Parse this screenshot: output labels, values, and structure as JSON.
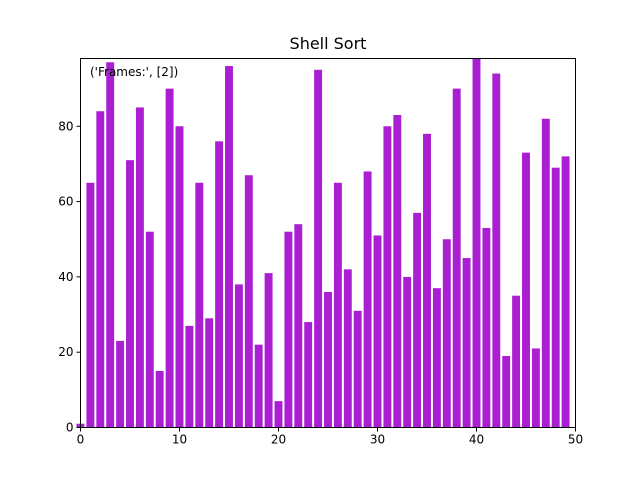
{
  "chart_data": {
    "type": "bar",
    "title": "Shell Sort",
    "annotation": "('Frames:', [2])",
    "xlabel": "",
    "ylabel": "",
    "xlim": [
      0,
      50
    ],
    "ylim": [
      0,
      98
    ],
    "grid": false,
    "bar_color": "#a91fd1",
    "x_ticks": [
      0,
      10,
      20,
      30,
      40,
      50
    ],
    "y_ticks": [
      0,
      20,
      40,
      60,
      80
    ],
    "x": [
      0,
      1,
      2,
      3,
      4,
      5,
      6,
      7,
      8,
      9,
      10,
      11,
      12,
      13,
      14,
      15,
      16,
      17,
      18,
      19,
      20,
      21,
      22,
      23,
      24,
      25,
      26,
      27,
      28,
      29,
      30,
      31,
      32,
      33,
      34,
      35,
      36,
      37,
      38,
      39,
      40,
      41,
      42,
      43,
      44,
      45,
      46,
      47,
      48,
      49
    ],
    "values": [
      1,
      65,
      84,
      97,
      23,
      71,
      85,
      52,
      15,
      90,
      80,
      27,
      65,
      29,
      76,
      96,
      38,
      67,
      22,
      41,
      7,
      52,
      54,
      28,
      95,
      36,
      65,
      42,
      31,
      68,
      51,
      80,
      83,
      40,
      57,
      78,
      37,
      50,
      90,
      45,
      98,
      53,
      94,
      19,
      35,
      73,
      21,
      82,
      69,
      72
    ]
  }
}
